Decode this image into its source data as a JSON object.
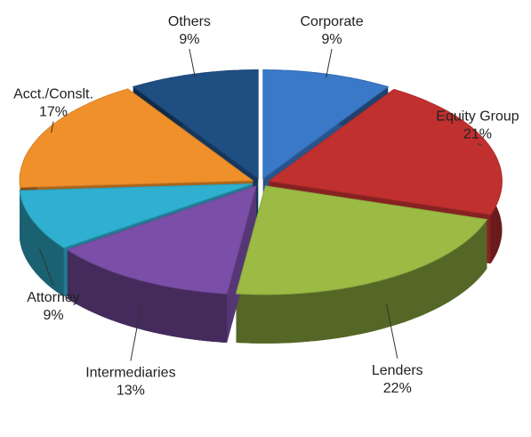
{
  "chart_data": {
    "type": "pie",
    "categories": [
      "Corporate",
      "Equity Group",
      "Lenders",
      "Intermediaries",
      "Attorney",
      "Acct./Conslt.",
      "Others"
    ],
    "values": [
      9,
      21,
      22,
      13,
      9,
      17,
      9
    ],
    "value_labels": [
      "9%",
      "21%",
      "22%",
      "13%",
      "9%",
      "17%",
      "9%"
    ],
    "colors": [
      "#3a78c8",
      "#c0302f",
      "#9bbb45",
      "#7b4fa8",
      "#2fb0d0",
      "#f0902a",
      "#1f4e82"
    ]
  }
}
